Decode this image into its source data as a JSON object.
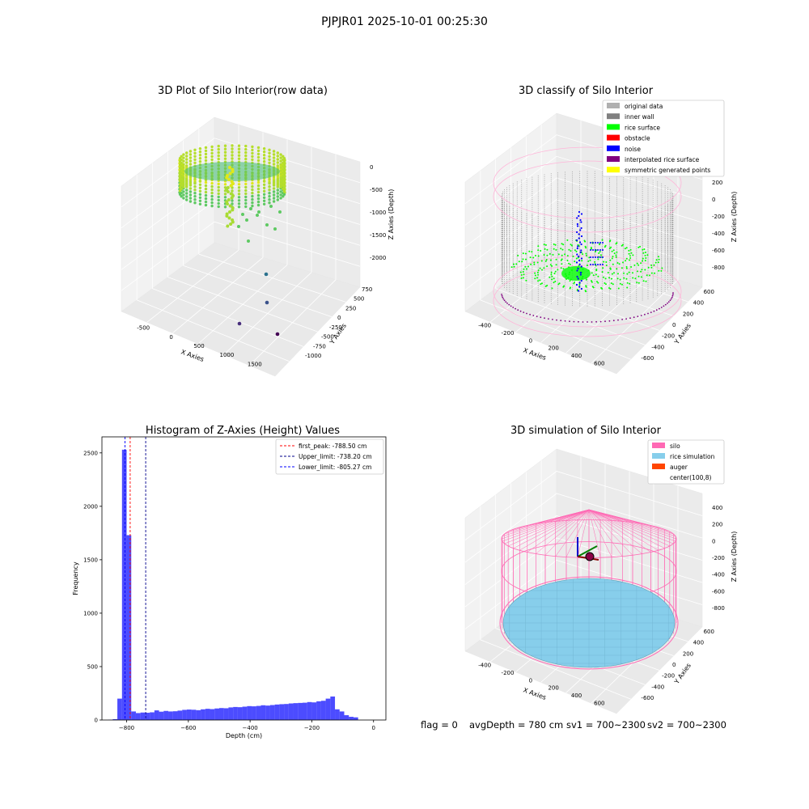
{
  "figure": {
    "suptitle": "PJPJR01 2025-10-01 00:25:30",
    "footer": {
      "flag": "flag = 0",
      "avg": "avgDepth = 780 cm",
      "sv1": "sv1 = 700~2300",
      "sv2": "sv2 = 700~2300"
    }
  },
  "colors": {
    "pane": "#f2f2f2",
    "grid": "#dcdcdc",
    "hist": "#0000ff",
    "first_peak": "#ff0000",
    "upper": "#00008b",
    "lower": "#0000ff",
    "silo": "#ff69b4",
    "rice": "#87ceeb",
    "auger": "#ff4500"
  },
  "chart_data": [
    {
      "type": "scatter",
      "title": "3D Plot of Silo Interior(row data)",
      "xlabel": "X Axies",
      "ylabel": "Y Axies",
      "zlabel": "Z Axies (Depth)",
      "x_ticks": [
        "-500",
        "0",
        "500",
        "1000",
        "1500"
      ],
      "y_ticks": [
        "-1000",
        "-750",
        "-500",
        "-250",
        "0",
        "250",
        "500",
        "750"
      ],
      "z_ticks": [
        "-2000",
        "-1500",
        "-1000",
        "-500",
        "0"
      ]
    },
    {
      "type": "scatter",
      "title": "3D classify of Silo Interior",
      "xlabel": "X Axies",
      "ylabel": "Y Axies",
      "zlabel": "Z Axies (Depth)",
      "x_ticks": [
        "-400",
        "-200",
        "0",
        "200",
        "400",
        "600"
      ],
      "y_ticks": [
        "-600",
        "-400",
        "-200",
        "0",
        "200",
        "400",
        "600"
      ],
      "z_ticks": [
        "-800",
        "-600",
        "-400",
        "-200",
        "0",
        "200"
      ],
      "legend": [
        {
          "label": "original data",
          "color": "#b0b0b0"
        },
        {
          "label": "inner wall",
          "color": "#808080"
        },
        {
          "label": "rice surface",
          "color": "#00ff00"
        },
        {
          "label": "obstacle",
          "color": "#ff0000"
        },
        {
          "label": "noise",
          "color": "#0000ff"
        },
        {
          "label": "interpolated rice surface",
          "color": "#800080"
        },
        {
          "label": "symmetric generated points",
          "color": "#ffff00"
        }
      ],
      "legend_loc": "upper right"
    },
    {
      "type": "bar",
      "title": "Histogram of Z-Axies (Height) Values",
      "xlabel": "Depth (cm)",
      "ylabel": "Frequency",
      "xlim": [
        -880,
        40
      ],
      "ylim": [
        0,
        2650
      ],
      "x_ticks": [
        -800,
        -600,
        -400,
        -200,
        0
      ],
      "y_ticks": [
        0,
        500,
        1000,
        1500,
        2000,
        2500
      ],
      "bin_start": -860,
      "bin_width": 15,
      "values": [
        2,
        8,
        200,
        2530,
        1730,
        80,
        65,
        70,
        68,
        72,
        90,
        78,
        85,
        80,
        82,
        88,
        95,
        98,
        96,
        92,
        100,
        105,
        102,
        108,
        112,
        110,
        118,
        122,
        120,
        125,
        130,
        128,
        132,
        138,
        135,
        140,
        145,
        148,
        150,
        155,
        158,
        160,
        162,
        168,
        165,
        175,
        180,
        200,
        220,
        100,
        80,
        45,
        30,
        25
      ],
      "vlines": [
        {
          "label": "first_peak: -788.50 cm",
          "x": -788.5,
          "color": "#ff0000"
        },
        {
          "label": "Upper_limit: -738.20 cm",
          "x": -738.2,
          "color": "#00008b"
        },
        {
          "label": "Lower_limit: -805.27 cm",
          "x": -805.27,
          "color": "#0000ff"
        }
      ],
      "legend_loc": "upper right"
    },
    {
      "type": "scatter",
      "title": "3D simulation of Silo Interior",
      "xlabel": "X Axies",
      "ylabel": "Y Axies",
      "zlabel": "Z Axies (Depth)",
      "x_ticks": [
        "-400",
        "-200",
        "0",
        "200",
        "400",
        "600"
      ],
      "y_ticks": [
        "-600",
        "-400",
        "-200",
        "0",
        "200",
        "400",
        "600"
      ],
      "z_ticks": [
        "-800",
        "-600",
        "-400",
        "-200",
        "0",
        "200",
        "400"
      ],
      "legend": [
        {
          "label": "silo",
          "color": "#ff69b4"
        },
        {
          "label": "rice simulation",
          "color": "#87ceeb"
        },
        {
          "label": "auger",
          "color": "#ff4500"
        },
        {
          "label": "center(100,8)",
          "color": ""
        }
      ],
      "legend_loc": "upper right"
    }
  ]
}
